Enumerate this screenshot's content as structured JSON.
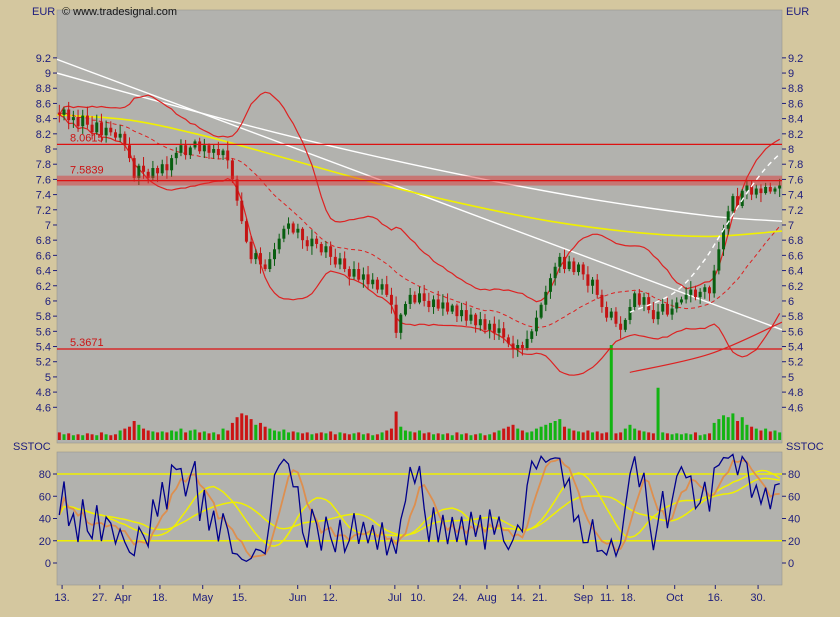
{
  "header": {
    "left_unit": "EUR",
    "right_unit": "EUR",
    "copyright": "© www.tradesignal.com"
  },
  "sstoc": {
    "label": "SSTOC",
    "axis": {
      "min": 0,
      "max": 100,
      "ticks": [
        0,
        20,
        40,
        60,
        80
      ]
    },
    "bands": [
      20,
      80
    ]
  },
  "colors": {
    "page_bg": "#d4c79f",
    "plot_bg": "#b2b2ae",
    "axis_text": "#1d1d7e",
    "white": "#ffffff",
    "yellow": "#f0f000",
    "red": "#dd2222",
    "level_red": "#dd1111",
    "band_fill": "rgba(225,45,45,0.45)",
    "candle_up": "#085e10",
    "candle_down": "#c41414",
    "vol_up": "#12b412",
    "vol_down": "#cc1414",
    "sstoc_k": "#00008b",
    "sstoc_d": "#dd8f4f"
  },
  "chart_data": {
    "type": "candlestick",
    "unit": "EUR",
    "price_axis": {
      "min": 4.6,
      "max": 9.2,
      "step": 0.2
    },
    "x_axis_labels": [
      {
        "label": "13.",
        "pos": 0.007
      },
      {
        "label": "27.",
        "pos": 0.059
      },
      {
        "label": "Apr",
        "pos": 0.091
      },
      {
        "label": "18.",
        "pos": 0.142
      },
      {
        "label": "May",
        "pos": 0.201
      },
      {
        "label": "15.",
        "pos": 0.252
      },
      {
        "label": "Jun",
        "pos": 0.332
      },
      {
        "label": "12.",
        "pos": 0.377
      },
      {
        "label": "Jul",
        "pos": 0.466
      },
      {
        "label": "10.",
        "pos": 0.498
      },
      {
        "label": "24.",
        "pos": 0.556
      },
      {
        "label": "Aug",
        "pos": 0.593
      },
      {
        "label": "14.",
        "pos": 0.636
      },
      {
        "label": "21.",
        "pos": 0.666
      },
      {
        "label": "Sep",
        "pos": 0.726
      },
      {
        "label": "11.",
        "pos": 0.759
      },
      {
        "label": "18.",
        "pos": 0.788
      },
      {
        "label": "Oct",
        "pos": 0.852
      },
      {
        "label": "16.",
        "pos": 0.908
      },
      {
        "label": "30.",
        "pos": 0.967
      }
    ],
    "levels": [
      {
        "label": "8.0615",
        "value": 8.0615,
        "band": false
      },
      {
        "label": "7.5839",
        "value": 7.5839,
        "band": true
      },
      {
        "label": "5.3671",
        "value": 5.3671,
        "band": false
      }
    ],
    "closes": [
      8.45,
      8.52,
      8.38,
      8.42,
      8.3,
      8.44,
      8.32,
      8.22,
      8.35,
      8.18,
      8.28,
      8.22,
      8.15,
      8.2,
      8.05,
      7.88,
      7.62,
      7.78,
      7.7,
      7.62,
      7.75,
      7.68,
      7.8,
      7.72,
      7.88,
      7.95,
      8.05,
      7.92,
      8.02,
      8.1,
      7.97,
      8.05,
      7.95,
      8.0,
      7.92,
      7.98,
      7.85,
      7.6,
      7.32,
      7.05,
      6.78,
      6.55,
      6.63,
      6.48,
      6.42,
      6.55,
      6.68,
      6.82,
      6.95,
      7.02,
      6.9,
      6.95,
      6.8,
      6.72,
      6.82,
      6.75,
      6.64,
      6.72,
      6.58,
      6.48,
      6.56,
      6.42,
      6.32,
      6.42,
      6.28,
      6.35,
      6.22,
      6.28,
      6.15,
      6.22,
      6.08,
      5.95,
      5.58,
      5.82,
      5.96,
      6.08,
      5.98,
      6.1,
      6.0,
      5.92,
      6.02,
      5.9,
      5.98,
      5.86,
      5.94,
      5.8,
      5.88,
      5.74,
      5.82,
      5.68,
      5.76,
      5.62,
      5.7,
      5.58,
      5.64,
      5.52,
      5.44,
      5.36,
      5.42,
      5.38,
      5.5,
      5.6,
      5.78,
      5.95,
      6.12,
      6.3,
      6.45,
      6.58,
      6.42,
      6.52,
      6.38,
      6.48,
      6.35,
      6.2,
      6.28,
      6.08,
      5.92,
      5.78,
      5.86,
      5.7,
      5.62,
      5.75,
      5.92,
      6.1,
      5.95,
      6.05,
      5.88,
      5.76,
      5.86,
      5.96,
      5.82,
      5.9,
      5.98,
      6.02,
      6.08,
      6.15,
      6.05,
      6.12,
      6.18,
      6.1,
      6.4,
      6.68,
      6.95,
      7.18,
      7.38,
      7.25,
      7.45,
      7.52,
      7.4,
      7.48,
      7.42,
      7.5,
      7.44,
      7.48,
      7.52
    ],
    "volumes": [
      8,
      6,
      7,
      5,
      6,
      5,
      7,
      6,
      5,
      8,
      6,
      5,
      6,
      10,
      12,
      14,
      20,
      16,
      12,
      10,
      9,
      8,
      9,
      8,
      10,
      9,
      12,
      8,
      10,
      11,
      8,
      9,
      7,
      8,
      6,
      12,
      10,
      18,
      24,
      28,
      26,
      22,
      16,
      18,
      14,
      12,
      10,
      9,
      11,
      8,
      9,
      8,
      7,
      8,
      6,
      7,
      8,
      7,
      9,
      6,
      8,
      7,
      6,
      7,
      8,
      6,
      7,
      5,
      6,
      8,
      10,
      12,
      30,
      14,
      10,
      9,
      8,
      10,
      7,
      8,
      6,
      7,
      6,
      7,
      5,
      8,
      6,
      7,
      5,
      6,
      7,
      5,
      6,
      8,
      10,
      12,
      14,
      16,
      12,
      10,
      8,
      9,
      12,
      14,
      16,
      18,
      20,
      22,
      14,
      12,
      10,
      9,
      8,
      10,
      8,
      9,
      7,
      8,
      100,
      7,
      8,
      12,
      16,
      12,
      10,
      9,
      8,
      7,
      55,
      8,
      7,
      6,
      7,
      6,
      7,
      6,
      8,
      5,
      6,
      7,
      18,
      22,
      26,
      24,
      28,
      20,
      24,
      16,
      14,
      12,
      10,
      12,
      9,
      10,
      8
    ],
    "overlays": {
      "yellow_ma": [
        [
          0,
          8.45
        ],
        [
          0.1,
          8.38
        ],
        [
          0.2,
          8.18
        ],
        [
          0.3,
          7.92
        ],
        [
          0.42,
          7.6
        ],
        [
          0.55,
          7.3
        ],
        [
          0.68,
          7.05
        ],
        [
          0.8,
          6.9
        ],
        [
          0.9,
          6.85
        ],
        [
          1,
          6.92
        ]
      ],
      "white_ma": [
        [
          0,
          9.0
        ],
        [
          0.15,
          8.6
        ],
        [
          0.3,
          8.22
        ],
        [
          0.45,
          7.88
        ],
        [
          0.6,
          7.58
        ],
        [
          0.75,
          7.32
        ],
        [
          0.9,
          7.12
        ],
        [
          1,
          7.05
        ]
      ],
      "white_trendline": [
        [
          0,
          9.18
        ],
        [
          1,
          5.62
        ]
      ],
      "white_dashed_uptrend": [
        [
          0.79,
          5.85
        ],
        [
          0.85,
          6.1
        ],
        [
          0.89,
          6.5
        ],
        [
          0.92,
          6.95
        ],
        [
          0.95,
          7.4
        ],
        [
          0.975,
          7.72
        ],
        [
          0.995,
          7.92
        ]
      ],
      "red_rising_support": [
        [
          0.79,
          5.06
        ],
        [
          0.9,
          5.3
        ],
        [
          1,
          5.72
        ]
      ]
    },
    "bollinger": {
      "period": 20,
      "mult": 2
    },
    "stochastic": {
      "period": 5,
      "smooth": 5
    }
  }
}
